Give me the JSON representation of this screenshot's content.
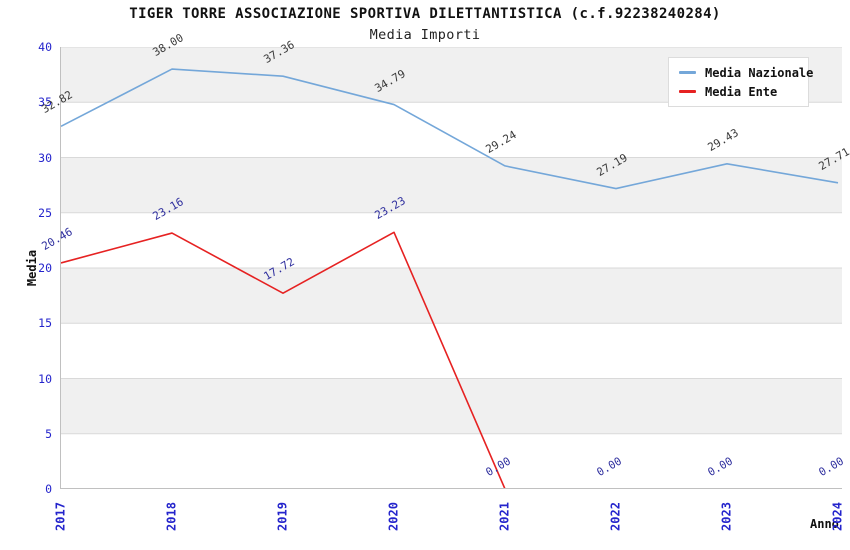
{
  "title": "TIGER TORRE ASSOCIAZIONE SPORTIVA DILETTANTISTICA (c.f.92238240284)",
  "subtitle": "Media Importi",
  "legend": {
    "items": [
      {
        "label": "Media Nazionale",
        "color": "#74a7d9"
      },
      {
        "label": "Media Ente",
        "color": "#e62222"
      }
    ]
  },
  "colors": {
    "band_gray": "#f0f0f0",
    "band_white": "#ffffff",
    "gridline": "#d9d9d9",
    "axis_border": "#c0c0c0",
    "tick_label_blue": "#2424cc",
    "nazionale_line": "#74a7d9",
    "ente_line": "#e62222",
    "nazionale_point_label": "#3a3a3a",
    "ente_point_label": "#2e2e9e"
  },
  "chart_data": {
    "type": "line",
    "categories": [
      "2017",
      "2018",
      "2019",
      "2020",
      "2021",
      "2022",
      "2023",
      "2024"
    ],
    "series": [
      {
        "name": "Media Nazionale",
        "color": "#74a7d9",
        "label_color": "#3a3a3a",
        "values": [
          32.82,
          38.0,
          37.36,
          34.79,
          29.24,
          27.19,
          29.43,
          27.71
        ]
      },
      {
        "name": "Media Ente",
        "color": "#e62222",
        "label_color": "#2e2e9e",
        "values": [
          20.46,
          23.16,
          17.72,
          23.23,
          0.0,
          0.0,
          0.0,
          0.0
        ]
      }
    ],
    "title": "TIGER TORRE ASSOCIAZIONE SPORTIVA DILETTANTISTICA (c.f.92238240284)",
    "subtitle": "Media Importi",
    "xlabel": "Anno",
    "ylabel": "Media",
    "ylim": [
      0,
      40
    ],
    "yticks": [
      0,
      5,
      10,
      15,
      20,
      25,
      30,
      35,
      40
    ],
    "grid": "horizontal-bands-alternating",
    "legend_position": "top-right",
    "point_label_decimals": 2
  }
}
